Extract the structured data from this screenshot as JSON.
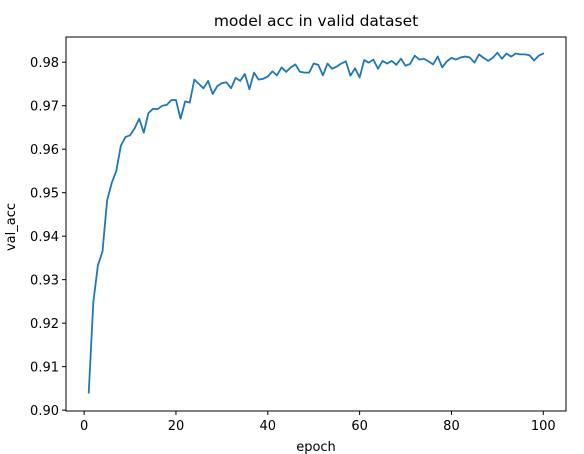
{
  "chart_data": {
    "type": "line",
    "title": "model acc in valid dataset",
    "xlabel": "epoch",
    "ylabel": "val_acc",
    "xlim": [
      -3.95,
      104.95
    ],
    "ylim": [
      0.8998,
      0.9858
    ],
    "xticks": [
      0,
      20,
      40,
      60,
      80,
      100
    ],
    "xtick_labels": [
      "0",
      "20",
      "40",
      "60",
      "80",
      "100"
    ],
    "yticks": [
      0.9,
      0.91,
      0.92,
      0.93,
      0.94,
      0.95,
      0.96,
      0.97,
      0.98
    ],
    "ytick_labels": [
      "0.90",
      "0.91",
      "0.92",
      "0.93",
      "0.94",
      "0.95",
      "0.96",
      "0.97",
      "0.98"
    ],
    "grid": false,
    "legend": "none",
    "line_color": "#1f77b4",
    "series": [
      {
        "x": [
          1,
          2,
          3,
          4,
          5,
          6,
          7,
          8,
          9,
          10,
          11,
          12,
          13,
          14,
          15,
          16,
          17,
          18,
          19,
          20,
          21,
          22,
          23,
          24,
          25,
          26,
          27,
          28,
          29,
          30,
          31,
          32,
          33,
          34,
          35,
          36,
          37,
          38,
          39,
          40,
          41,
          42,
          43,
          44,
          45,
          46,
          47,
          48,
          49,
          50,
          51,
          52,
          53,
          54,
          55,
          56,
          57,
          58,
          59,
          60,
          61,
          62,
          63,
          64,
          65,
          66,
          67,
          68,
          69,
          70,
          71,
          72,
          73,
          74,
          75,
          76,
          77,
          78,
          79,
          80,
          81,
          82,
          83,
          84,
          85,
          86,
          87,
          88,
          89,
          90,
          91,
          92,
          93,
          94,
          95,
          96,
          97,
          98,
          99,
          100
        ],
        "values": [
          0.904,
          0.9248,
          0.9333,
          0.9365,
          0.9482,
          0.9522,
          0.955,
          0.9608,
          0.9628,
          0.9632,
          0.9648,
          0.967,
          0.9638,
          0.9683,
          0.9693,
          0.9692,
          0.97,
          0.9702,
          0.9713,
          0.9713,
          0.967,
          0.971,
          0.9707,
          0.976,
          0.975,
          0.974,
          0.9757,
          0.9727,
          0.9745,
          0.9752,
          0.9754,
          0.974,
          0.9764,
          0.9757,
          0.9773,
          0.9738,
          0.9776,
          0.976,
          0.9762,
          0.9767,
          0.9779,
          0.977,
          0.9788,
          0.9778,
          0.9788,
          0.9795,
          0.9778,
          0.9776,
          0.9776,
          0.9797,
          0.9794,
          0.977,
          0.9797,
          0.9785,
          0.979,
          0.9797,
          0.9802,
          0.9769,
          0.9786,
          0.9765,
          0.9805,
          0.9799,
          0.9806,
          0.9785,
          0.9803,
          0.9797,
          0.9803,
          0.9794,
          0.9808,
          0.9792,
          0.9796,
          0.9815,
          0.9806,
          0.9808,
          0.9802,
          0.9795,
          0.9813,
          0.9788,
          0.9802,
          0.981,
          0.9806,
          0.9811,
          0.9813,
          0.9811,
          0.9799,
          0.9818,
          0.981,
          0.9803,
          0.981,
          0.9822,
          0.9808,
          0.982,
          0.9813,
          0.982,
          0.9818,
          0.9818,
          0.9816,
          0.9804,
          0.9815,
          0.982
        ]
      }
    ]
  }
}
